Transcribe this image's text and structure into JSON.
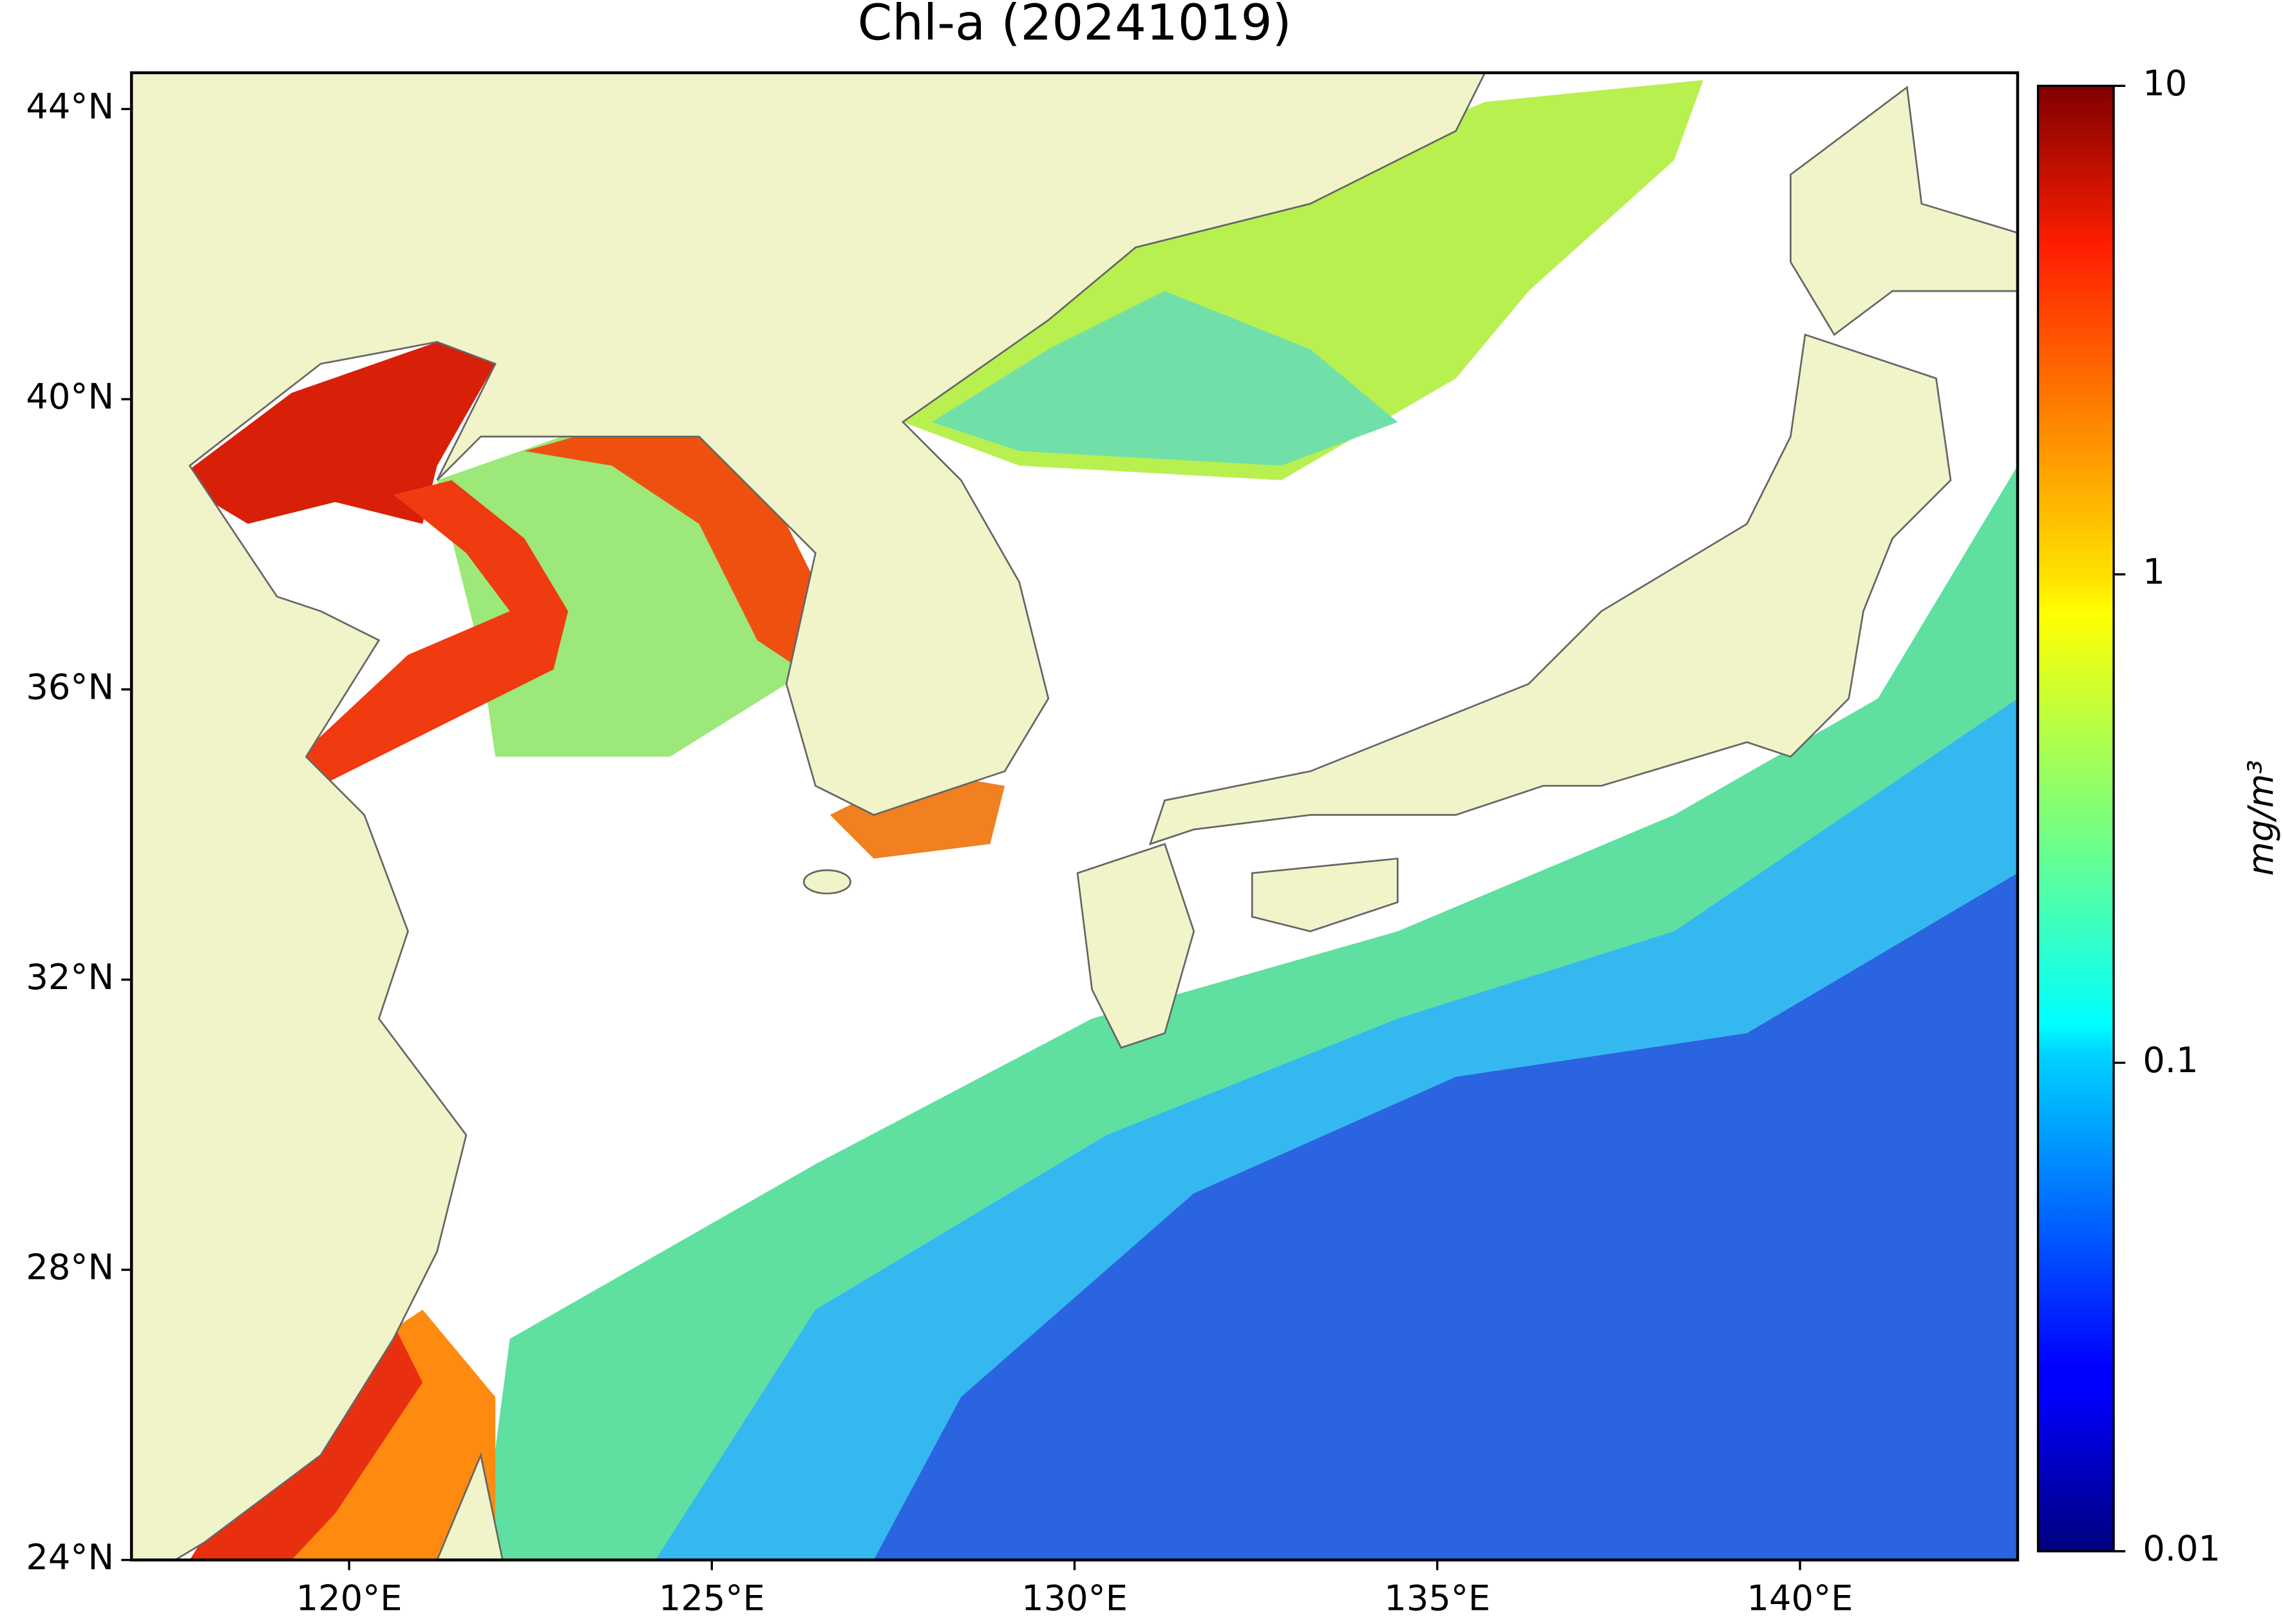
{
  "title": "Chl-a (20241019)",
  "map": {
    "xlim": [
      117,
      143
    ],
    "ylim": [
      24,
      44.5
    ],
    "xticks": [
      {
        "value": 120,
        "label": "120°E"
      },
      {
        "value": 125,
        "label": "125°E"
      },
      {
        "value": 130,
        "label": "130°E"
      },
      {
        "value": 135,
        "label": "135°E"
      },
      {
        "value": 140,
        "label": "140°E"
      }
    ],
    "yticks": [
      {
        "value": 24,
        "label": "24°N"
      },
      {
        "value": 28,
        "label": "28°N"
      },
      {
        "value": 32,
        "label": "32°N"
      },
      {
        "value": 36,
        "label": "36°N"
      },
      {
        "value": 40,
        "label": "40°N"
      },
      {
        "value": 44,
        "label": "44°N"
      }
    ]
  },
  "colorbar": {
    "label": "mg/m³",
    "scale": "log",
    "lim": [
      0.01,
      10
    ],
    "ticks": [
      0.01,
      0.1,
      1,
      10
    ],
    "colormap": "jet"
  }
}
